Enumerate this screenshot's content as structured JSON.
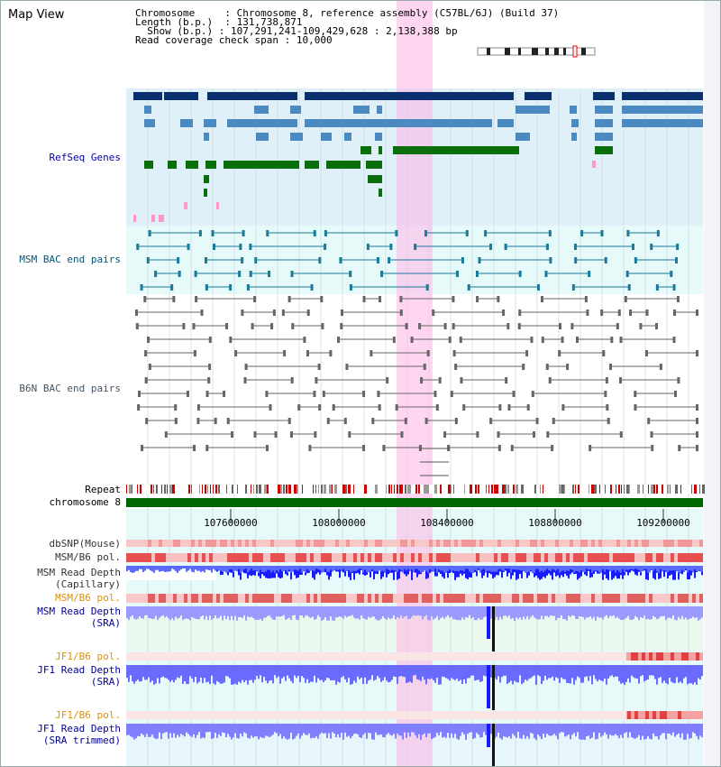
{
  "title": "Map View",
  "info": {
    "chromosome_label": "Chromosome",
    "chromosome_value": "Chromosome 8, reference assembly (C57BL/6J) (Build 37)",
    "length_label": "Length (b.p.)",
    "length_value": "131,738,871",
    "show_label": "Show (b.p.)",
    "show_value": "107,291,241-109,429,628 : 2,138,388 bp",
    "coverage_label": "Read coverage check span",
    "coverage_value": "10,000"
  },
  "tracks": {
    "refseq": "RefSeq Genes",
    "msm_bac": "MSM BAC end pairs",
    "b6n_bac": "B6N BAC end pairs",
    "repeat": "Repeat",
    "chromosome": "chromosome 8",
    "dbsnp": "dbSNP(Mouse)",
    "msm_b6_pol": "MSM/B6 pol.",
    "msm_depth_cap_1": "MSM Read Depth",
    "msm_depth_cap_2": "(Capillary)",
    "msm_b6_pol_2": "MSM/B6 pol.",
    "msm_depth_sra_1": "MSM Read Depth",
    "msm_depth_sra_2": "(SRA)",
    "jf1_pol_1": "JF1/B6 pol.",
    "jf1_depth_1": "JF1 Read Depth",
    "jf1_depth_1b": "(SRA)",
    "jf1_pol_2": "JF1/B6 pol.",
    "jf1_depth_2": "JF1 Read Depth",
    "jf1_depth_2b": "(SRA trimmed)"
  },
  "axis_ticks": [
    "107600000",
    "108000000",
    "108400000",
    "108800000",
    "109200000"
  ],
  "colors": {
    "refseq_bg": "#e0f0f8",
    "bac_bg": "#e6fafa",
    "highlight": "#ffb4e6",
    "gene_dark": "#0a2f6e",
    "gene_mid": "#4a8ac0",
    "gene_green": "#0a6e0a",
    "chromosome_bar": "#006600",
    "depth_blue": "#1a1aff",
    "depth_light": "#7a7aff",
    "pol_red": "#e85050"
  }
}
